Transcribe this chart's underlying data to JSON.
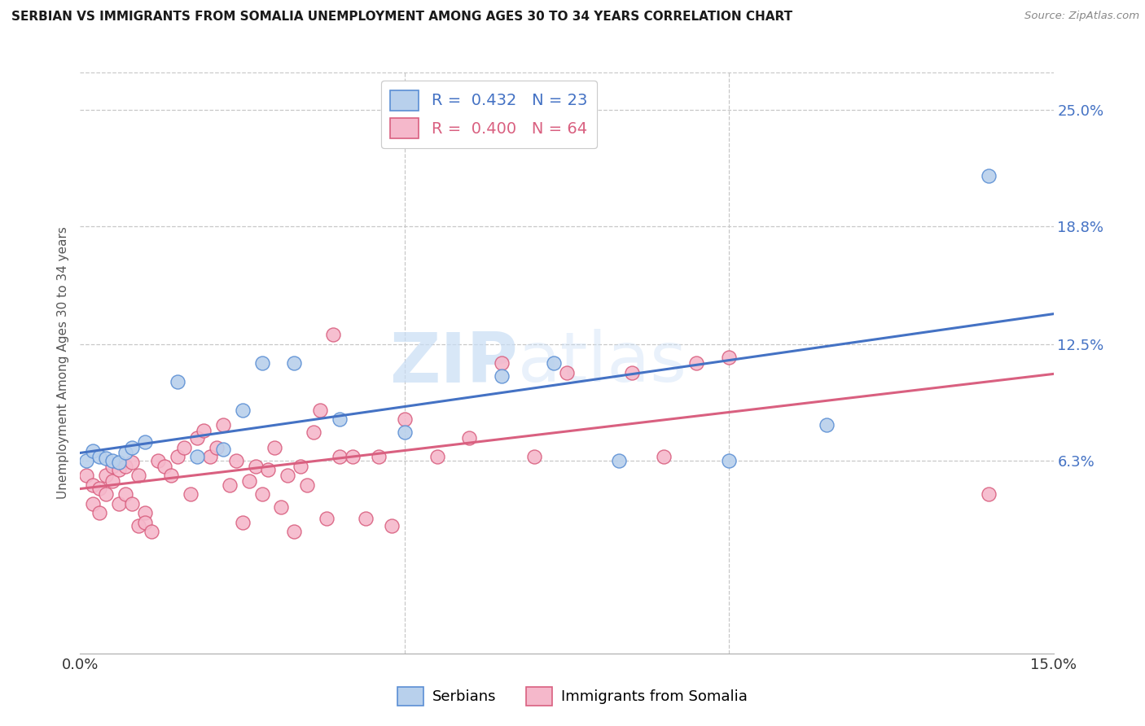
{
  "title": "SERBIAN VS IMMIGRANTS FROM SOMALIA UNEMPLOYMENT AMONG AGES 30 TO 34 YEARS CORRELATION CHART",
  "source": "Source: ZipAtlas.com",
  "ylabel": "Unemployment Among Ages 30 to 34 years",
  "xlim": [
    0.0,
    0.15
  ],
  "ylim": [
    -0.04,
    0.27
  ],
  "right_yticks": [
    0.063,
    0.125,
    0.188,
    0.25
  ],
  "right_yticklabels": [
    "6.3%",
    "12.5%",
    "18.8%",
    "25.0%"
  ],
  "series1_label": "Serbians",
  "series1_color": "#b8d0ec",
  "series1_edge_color": "#5b8fd4",
  "series1_line_color": "#4472c4",
  "series1_R": 0.432,
  "series1_N": 23,
  "series2_label": "Immigrants from Somalia",
  "series2_color": "#f5b8cb",
  "series2_edge_color": "#d96080",
  "series2_line_color": "#d96080",
  "series2_R": 0.4,
  "series2_N": 64,
  "watermark": "ZIPatlas",
  "background_color": "#ffffff",
  "grid_color": "#c8c8c8",
  "series1_x": [
    0.001,
    0.002,
    0.003,
    0.004,
    0.005,
    0.006,
    0.007,
    0.008,
    0.01,
    0.015,
    0.018,
    0.022,
    0.025,
    0.028,
    0.033,
    0.04,
    0.05,
    0.065,
    0.073,
    0.083,
    0.1,
    0.115,
    0.14
  ],
  "series1_y": [
    0.063,
    0.068,
    0.065,
    0.064,
    0.063,
    0.062,
    0.067,
    0.07,
    0.073,
    0.105,
    0.065,
    0.069,
    0.09,
    0.115,
    0.115,
    0.085,
    0.078,
    0.108,
    0.115,
    0.063,
    0.063,
    0.082,
    0.215
  ],
  "series2_x": [
    0.001,
    0.002,
    0.002,
    0.003,
    0.003,
    0.004,
    0.004,
    0.005,
    0.005,
    0.006,
    0.006,
    0.007,
    0.007,
    0.008,
    0.008,
    0.009,
    0.009,
    0.01,
    0.01,
    0.011,
    0.012,
    0.013,
    0.014,
    0.015,
    0.016,
    0.017,
    0.018,
    0.019,
    0.02,
    0.021,
    0.022,
    0.023,
    0.024,
    0.025,
    0.026,
    0.027,
    0.028,
    0.029,
    0.03,
    0.031,
    0.032,
    0.033,
    0.034,
    0.035,
    0.036,
    0.037,
    0.038,
    0.039,
    0.04,
    0.042,
    0.044,
    0.046,
    0.048,
    0.05,
    0.055,
    0.06,
    0.065,
    0.07,
    0.075,
    0.085,
    0.09,
    0.095,
    0.1,
    0.14
  ],
  "series2_y": [
    0.055,
    0.05,
    0.04,
    0.048,
    0.035,
    0.045,
    0.055,
    0.052,
    0.06,
    0.058,
    0.04,
    0.06,
    0.045,
    0.062,
    0.04,
    0.055,
    0.028,
    0.035,
    0.03,
    0.025,
    0.063,
    0.06,
    0.055,
    0.065,
    0.07,
    0.045,
    0.075,
    0.079,
    0.065,
    0.07,
    0.082,
    0.05,
    0.063,
    0.03,
    0.052,
    0.06,
    0.045,
    0.058,
    0.07,
    0.038,
    0.055,
    0.025,
    0.06,
    0.05,
    0.078,
    0.09,
    0.032,
    0.13,
    0.065,
    0.065,
    0.032,
    0.065,
    0.028,
    0.085,
    0.065,
    0.075,
    0.115,
    0.065,
    0.11,
    0.11,
    0.065,
    0.115,
    0.118,
    0.045
  ]
}
